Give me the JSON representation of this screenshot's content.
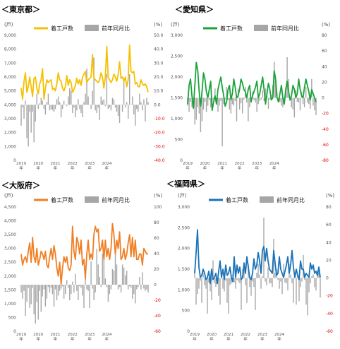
{
  "legend": {
    "line_label": "着工戸数",
    "bar_label": "前年同月比"
  },
  "units": {
    "left": "(戸)",
    "right": "(%)"
  },
  "x_years": [
    "2019",
    "2020",
    "2021",
    "2022",
    "2023",
    "2024"
  ],
  "x_year_suffix": "年",
  "chart_data": [
    {
      "type": "line+bar",
      "title": "＜東京都＞",
      "line_color": "#f5c000",
      "left_ticks": [
        "9,000",
        "8,000",
        "7,000",
        "6,000",
        "5,000",
        "4,000",
        "3,000",
        "2,000",
        "1,000",
        "0"
      ],
      "right_ticks": [
        "50.0",
        "40.0",
        "30.0",
        "20.0",
        "10.0",
        "0.0",
        "-10.0",
        "-20.0",
        "-30.0",
        "-40.0"
      ],
      "left_range": [
        0,
        9000
      ],
      "right_range": [
        -40,
        50
      ],
      "line": [
        5200,
        4400,
        5700,
        6300,
        4900,
        5300,
        6000,
        5300,
        4600,
        5900,
        6000,
        5200,
        4800,
        5500,
        5800,
        6600,
        4400,
        5200,
        5800,
        5600,
        5700,
        5800,
        5100,
        5200,
        5000,
        5500,
        6300,
        5800,
        5700,
        5200,
        5000,
        5300,
        6100,
        5400,
        5800,
        5600,
        4900,
        5100,
        5400,
        5900,
        5500,
        5800,
        5400,
        6000,
        6200,
        6400,
        5600,
        5800,
        5900,
        6000,
        7600,
        5900,
        5800,
        5700,
        5600,
        5800,
        6300,
        6000,
        5200,
        6000,
        8200,
        6000,
        5800,
        5600,
        5800,
        6200,
        6000,
        5700,
        6200,
        7100,
        5900,
        6000,
        5700,
        6000,
        5300,
        5800,
        8300,
        6400,
        6300,
        6400,
        5500,
        5600,
        5300,
        5300,
        5800,
        5500,
        5400,
        5500,
        5300,
        4900
      ],
      "bars": [
        -15,
        -2,
        -10,
        3,
        -24,
        -30,
        -5,
        -20,
        -5,
        -27,
        -12,
        8,
        -3,
        1,
        5,
        3,
        -3,
        -7,
        2,
        8,
        -4,
        -3,
        -4,
        -5,
        -3,
        4,
        6,
        2,
        -9,
        -3,
        3,
        0,
        -1,
        6,
        12,
        10,
        -6,
        -2,
        -9,
        -4,
        4,
        -3,
        -6,
        -9,
        2,
        8,
        26,
        6,
        0,
        -3,
        10,
        34,
        -4,
        -6,
        -2,
        -11,
        6,
        3,
        4,
        -1,
        22,
        -3,
        -2,
        -4,
        5,
        4,
        -2,
        -5,
        -8,
        -13,
        0,
        -5,
        18,
        -2,
        2,
        -10,
        22,
        0,
        6,
        -7,
        -15,
        -3,
        -5,
        8,
        2,
        -4,
        4,
        -12,
        5,
        2
      ]
    },
    {
      "type": "line+bar",
      "title": "＜愛知県＞",
      "line_color": "#1aa33a",
      "left_ticks": [
        "3,000",
        "2,500",
        "2,000",
        "1,500",
        "1,000",
        "500",
        "0"
      ],
      "right_ticks": [
        "80",
        "60",
        "40",
        "20",
        "0",
        "-20",
        "-40",
        "-60",
        "-80"
      ],
      "left_range": [
        0,
        3000
      ],
      "right_range": [
        -80,
        80
      ],
      "line": [
        1350,
        1800,
        1950,
        1550,
        1250,
        1800,
        2350,
        2150,
        1650,
        1300,
        1650,
        2100,
        1950,
        1650,
        1500,
        1700,
        1900,
        1200,
        1400,
        1550,
        1350,
        1700,
        1850,
        2000,
        1750,
        1550,
        1300,
        1400,
        1700,
        1800,
        1450,
        1600,
        1950,
        1750,
        1500,
        1550,
        1700,
        1950,
        1850,
        1700,
        1650,
        1500,
        1700,
        1800,
        1400,
        1550,
        1650,
        1750,
        1900,
        1500,
        1600,
        1800,
        2000,
        1700,
        1350,
        1600,
        1850,
        1700,
        1450,
        1500,
        2150,
        1950,
        1500,
        1400,
        1600,
        1800,
        1500,
        1350,
        1700,
        1900,
        1650,
        1450,
        1550,
        1800,
        1700,
        1500,
        1600,
        1950,
        1700,
        1550,
        1500,
        1750,
        1950,
        1800,
        1650,
        1450,
        1700,
        1600,
        1500,
        1400
      ],
      "bars": [
        -10,
        -18,
        -5,
        -12,
        -2,
        -34,
        -28,
        -12,
        -20,
        -44,
        -30,
        -15,
        -5,
        -18,
        -10,
        -3,
        -12,
        -5,
        -2,
        12,
        -6,
        -18,
        -10,
        -4,
        -62,
        -8,
        -2,
        14,
        -3,
        -15,
        -20,
        -8,
        -10,
        -4,
        -30,
        12,
        -15,
        -7,
        -20,
        -2,
        14,
        -6,
        -30,
        -12,
        -5,
        8,
        -3,
        -6,
        -18,
        -8,
        -4,
        -2,
        10,
        -4,
        12,
        6,
        -14,
        -2,
        4,
        16,
        46,
        22,
        6,
        -3,
        -5,
        -10,
        -12,
        -4,
        6,
        52,
        24,
        -4,
        -12,
        -15,
        -25,
        10,
        -5,
        -6,
        -16,
        8,
        -8,
        -12,
        14,
        -6,
        -8,
        -14,
        24,
        -10,
        -16,
        -22
      ]
    },
    {
      "type": "line+bar",
      "title": "＜大阪府＞",
      "line_color": "#f07f25",
      "left_ticks": [
        "4,500",
        "4,000",
        "3,500",
        "3,000",
        "2,500",
        "2,000",
        "1,500",
        "1,000",
        "500",
        "0"
      ],
      "right_ticks": [
        "100",
        "80",
        "60",
        "40",
        "20",
        "0",
        "-20",
        "-40",
        "-60"
      ],
      "left_range": [
        0,
        4500
      ],
      "right_range": [
        -60,
        100
      ],
      "line": [
        2800,
        2400,
        2600,
        2700,
        2500,
        2900,
        3200,
        2500,
        3400,
        2700,
        2500,
        3000,
        2400,
        2600,
        2900,
        2800,
        2600,
        2900,
        2400,
        2300,
        2700,
        3000,
        2600,
        3100,
        2800,
        2300,
        2000,
        2500,
        1700,
        2300,
        2700,
        2500,
        2700,
        2300,
        2200,
        2400,
        3800,
        2900,
        2600,
        3400,
        3200,
        2800,
        3300,
        2400,
        2600,
        1900,
        2800,
        3300,
        2600,
        2800,
        2600,
        3500,
        3800,
        3600,
        3700,
        2900,
        3000,
        3300,
        2600,
        3300,
        2700,
        3000,
        2600,
        3000,
        3900,
        3500,
        2800,
        3300,
        3000,
        3600,
        2600,
        2700,
        3000,
        2600,
        2800,
        3200,
        3500,
        2700,
        3400,
        2700,
        3300,
        2600,
        2600,
        2800,
        2800,
        2400,
        3000,
        2900,
        2800,
        2800
      ],
      "bars": [
        -10,
        -18,
        -8,
        -40,
        -22,
        -4,
        -30,
        -25,
        -4,
        -38,
        -50,
        -22,
        -45,
        -8,
        -35,
        -15,
        -6,
        -28,
        -18,
        -3,
        -10,
        -4,
        -12,
        -28,
        -6,
        -20,
        -14,
        -8,
        -5,
        -2,
        -18,
        -12,
        6,
        -4,
        -20,
        -12,
        4,
        -10,
        14,
        -8,
        -20,
        -2,
        -4,
        -14,
        -30,
        10,
        -6,
        -8,
        -30,
        30,
        -5,
        -20,
        -10,
        46,
        26,
        10,
        -3,
        40,
        46,
        8,
        -3,
        -22,
        -12,
        -6,
        20,
        18,
        40,
        26,
        -6,
        -3,
        -10,
        26,
        22,
        12,
        18,
        -6,
        -2,
        -4,
        -18,
        -12,
        -24,
        -6,
        -3,
        10,
        -6,
        16,
        -5,
        -8,
        -6,
        -10
      ]
    },
    {
      "type": "line+bar",
      "title": "＜福岡県＞",
      "line_color": "#1a73b8",
      "left_ticks": [
        "3,000",
        "2,500",
        "2,000",
        "1,500",
        "1,000",
        "500",
        "0"
      ],
      "right_ticks": [
        "80",
        "60",
        "40",
        "20",
        "0",
        "-20",
        "-40",
        "-60"
      ],
      "left_range": [
        0,
        3000
      ],
      "right_range": [
        -60,
        80
      ],
      "line": [
        1400,
        1900,
        2450,
        1550,
        1300,
        1350,
        1500,
        1400,
        1250,
        1300,
        1450,
        1150,
        1500,
        1250,
        1300,
        1400,
        1150,
        1450,
        1700,
        1300,
        1500,
        1250,
        1600,
        1350,
        1400,
        1550,
        1300,
        1200,
        1800,
        1300,
        1600,
        1400,
        1550,
        1250,
        1300,
        1650,
        1400,
        1800,
        1550,
        1300,
        1250,
        1400,
        1750,
        1500,
        1600,
        1900,
        1700,
        1400,
        1950,
        2050,
        1700,
        2000,
        1700,
        1500,
        1450,
        1400,
        1950,
        1650,
        1350,
        1400,
        1800,
        1500,
        1400,
        1300,
        1450,
        1600,
        1800,
        1400,
        1600,
        1950,
        1550,
        1300,
        1500,
        1350,
        1250,
        1700,
        1500,
        1500,
        1300,
        1400,
        1350,
        1300,
        1650,
        1500,
        1600,
        1400,
        1450,
        1350,
        1550,
        1300
      ],
      "bars": [
        10,
        -30,
        -18,
        -12,
        -3,
        -28,
        6,
        -8,
        -12,
        -40,
        -5,
        -15,
        -25,
        20,
        -6,
        -10,
        -4,
        -20,
        -30,
        6,
        -12,
        -15,
        -3,
        -28,
        -40,
        -8,
        -6,
        4,
        -5,
        -12,
        -2,
        -4,
        -6,
        -36,
        10,
        12,
        -8,
        -28,
        16,
        -10,
        -20,
        -4,
        -10,
        -36,
        6,
        16,
        4,
        -12,
        2,
        68,
        -4,
        -8,
        12,
        -6,
        -6,
        -10,
        44,
        6,
        10,
        -2,
        -12,
        -4,
        -18,
        16,
        -5,
        -6,
        -14,
        16,
        4,
        -6,
        -28,
        6,
        -30,
        2,
        -26,
        -10,
        -4,
        26,
        -2,
        -30,
        -42,
        -16,
        -6,
        2,
        4,
        -10,
        -14,
        8,
        6,
        -22
      ]
    }
  ]
}
